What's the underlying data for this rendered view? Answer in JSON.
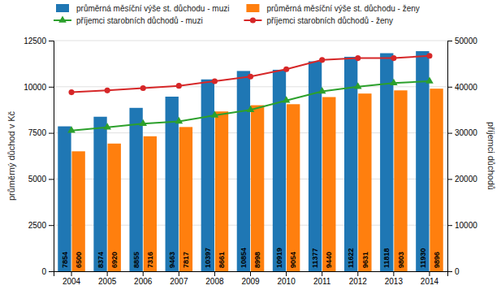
{
  "chart_data": {
    "type": "bar",
    "categories": [
      "2004",
      "2005",
      "2006",
      "2007",
      "2008",
      "2009",
      "2010",
      "2011",
      "2012",
      "2013",
      "2014"
    ],
    "series": [
      {
        "name": "průměrná měsíční výše st. důchodu - muzi",
        "type": "bar",
        "data_labels": true,
        "values": [
          7854,
          8374,
          8855,
          9463,
          10397,
          10854,
          10919,
          11377,
          11622,
          11818,
          11930
        ]
      },
      {
        "name": "průměrná měsíční výše st. důchodu - ženy",
        "type": "bar",
        "data_labels": true,
        "values": [
          6500,
          6920,
          7316,
          7817,
          8661,
          8998,
          9054,
          9440,
          9631,
          9803,
          9896
        ]
      },
      {
        "name": "příjemci starobních důchodů - muzi",
        "type": "line",
        "axis": "y2",
        "marker": "triangle",
        "values": [
          30500,
          31200,
          32000,
          32500,
          33800,
          35000,
          37000,
          39000,
          40000,
          40800,
          41200
        ]
      },
      {
        "name": "příjemci starobních důchodů - ženy",
        "type": "line",
        "axis": "y2",
        "marker": "circle",
        "values": [
          38800,
          39200,
          39700,
          40200,
          41200,
          42200,
          43800,
          45800,
          46200,
          46200,
          46700
        ]
      }
    ],
    "ylabel": "průměrný důchod v Kč",
    "y2label": "příjemci důchodů",
    "ylim": [
      0,
      12500
    ],
    "yticks": [
      0,
      2500,
      5000,
      7500,
      10000,
      12500
    ],
    "y2lim": [
      0,
      50000
    ],
    "y2ticks": [
      0,
      10000,
      20000,
      30000,
      40000,
      50000
    ],
    "grid": true,
    "legend": "top"
  }
}
